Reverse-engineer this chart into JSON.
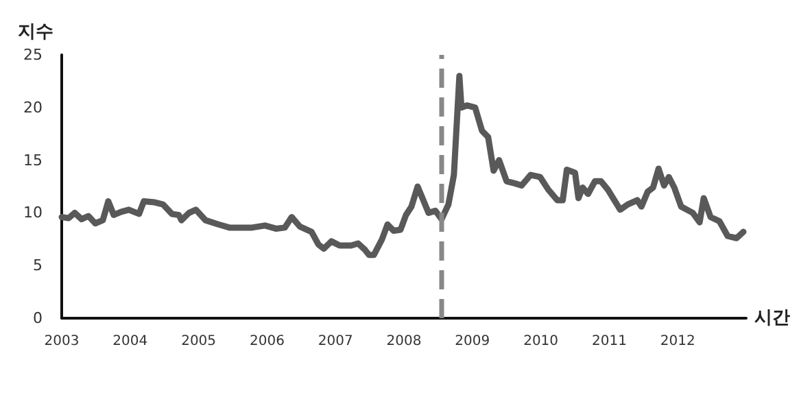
{
  "chart_data": {
    "type": "line",
    "xlabel": "시간",
    "ylabel": "지수",
    "xlim": [
      2003,
      2013
    ],
    "xticks": [
      2003,
      2004,
      2005,
      2006,
      2007,
      2008,
      2009,
      2010,
      2011,
      2012
    ],
    "ylim": [
      0,
      25
    ],
    "yticks": [
      0,
      5,
      10,
      15,
      20,
      25
    ],
    "marker": "none",
    "line_style": "solid",
    "ref_lines": [
      {
        "axis": "x",
        "value": 2008.55,
        "label": null,
        "color": "#888888",
        "line_style": "dashed"
      }
    ],
    "series": [
      {
        "color": "#595959",
        "x": [
          2003.0,
          2003.1,
          2003.19,
          2003.29,
          2003.39,
          2003.49,
          2003.6,
          2003.68,
          2003.76,
          2003.87,
          2003.98,
          2004.13,
          2004.2,
          2004.36,
          2004.48,
          2004.61,
          2004.71,
          2004.75,
          2004.86,
          2004.96,
          2005.1,
          2005.29,
          2005.45,
          2005.62,
          2005.78,
          2005.97,
          2006.13,
          2006.26,
          2006.36,
          2006.48,
          2006.65,
          2006.75,
          2006.83,
          2006.94,
          2007.06,
          2007.23,
          2007.33,
          2007.43,
          2007.49,
          2007.56,
          2007.68,
          2007.76,
          2007.85,
          2007.95,
          2008.03,
          2008.11,
          2008.2,
          2008.36,
          2008.46,
          2008.55,
          2008.65,
          2008.73,
          2008.81,
          2008.84,
          2008.92,
          2009.04,
          2009.14,
          2009.23,
          2009.31,
          2009.39,
          2009.5,
          2009.62,
          2009.72,
          2009.85,
          2009.99,
          2010.11,
          2010.24,
          2010.32,
          2010.38,
          2010.5,
          2010.55,
          2010.61,
          2010.69,
          2010.79,
          2010.88,
          2010.98,
          2011.16,
          2011.27,
          2011.41,
          2011.47,
          2011.56,
          2011.64,
          2011.72,
          2011.8,
          2011.87,
          2011.95,
          2012.05,
          2012.22,
          2012.32,
          2012.38,
          2012.48,
          2012.61,
          2012.73,
          2012.86,
          2012.96
        ],
        "values": [
          9.6,
          9.5,
          10.0,
          9.4,
          9.7,
          9.0,
          9.3,
          11.1,
          9.8,
          10.1,
          10.3,
          9.9,
          11.1,
          11.0,
          10.8,
          9.9,
          9.8,
          9.3,
          10.0,
          10.3,
          9.3,
          8.9,
          8.6,
          8.6,
          8.6,
          8.8,
          8.5,
          8.6,
          9.6,
          8.7,
          8.2,
          7.0,
          6.6,
          7.3,
          6.9,
          6.9,
          7.1,
          6.5,
          6.0,
          6.0,
          7.5,
          8.9,
          8.3,
          8.4,
          9.8,
          10.6,
          12.5,
          10.0,
          10.2,
          9.4,
          10.8,
          13.6,
          23.0,
          20.0,
          20.2,
          20.0,
          17.8,
          17.2,
          14.0,
          15.0,
          13.0,
          12.8,
          12.6,
          13.6,
          13.4,
          12.2,
          11.2,
          11.2,
          14.1,
          13.8,
          11.4,
          12.4,
          11.8,
          13.0,
          13.0,
          12.2,
          10.3,
          10.8,
          11.2,
          10.6,
          12.0,
          12.4,
          14.2,
          12.6,
          13.4,
          12.4,
          10.6,
          10.0,
          9.1,
          11.4,
          9.6,
          9.2,
          7.8,
          7.6,
          8.2
        ]
      }
    ]
  }
}
